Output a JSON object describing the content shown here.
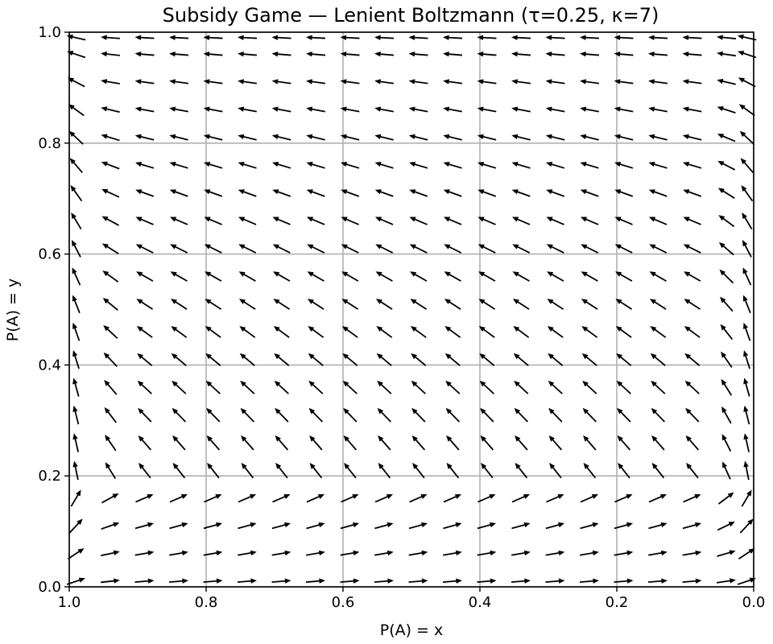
{
  "chart_data": {
    "type": "quiver",
    "title": "Subsidy Game — Lenient Boltzmann (τ=0.25, κ=7)",
    "xlabel": "P(A) = x",
    "ylabel": "P(A) = y",
    "xlim": [
      1.0,
      0.0
    ],
    "ylim": [
      0.0,
      1.0
    ],
    "x_reversed": true,
    "grid": true,
    "x_ticks": [
      "1.0",
      "0.8",
      "0.6",
      "0.4",
      "0.2",
      "0.0"
    ],
    "y_ticks": [
      "0.0",
      "0.2",
      "0.4",
      "0.6",
      "0.8",
      "1.0"
    ],
    "x_tick_values": [
      1.0,
      0.8,
      0.6,
      0.4,
      0.2,
      0.0
    ],
    "y_tick_values": [
      0.0,
      0.2,
      0.4,
      0.6,
      0.8,
      1.0
    ],
    "field_grid": {
      "x_values": [
        0.99,
        0.94,
        0.89,
        0.84,
        0.79,
        0.74,
        0.69,
        0.64,
        0.59,
        0.54,
        0.49,
        0.44,
        0.39,
        0.34,
        0.29,
        0.24,
        0.19,
        0.14,
        0.09,
        0.04,
        0.01
      ],
      "y_values": [
        0.01,
        0.06,
        0.11,
        0.16,
        0.21,
        0.26,
        0.31,
        0.36,
        0.41,
        0.46,
        0.51,
        0.56,
        0.61,
        0.66,
        0.71,
        0.76,
        0.81,
        0.86,
        0.91,
        0.96,
        0.99
      ]
    },
    "arrow_color": "#000000"
  }
}
